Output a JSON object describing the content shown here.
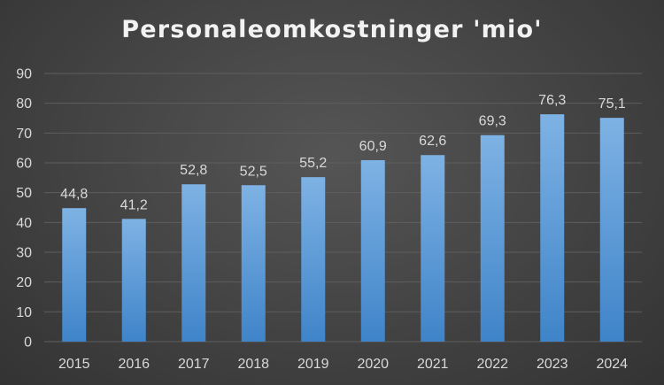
{
  "chart_data": {
    "type": "bar",
    "title": "Personaleomkostninger 'mio'",
    "xlabel": "",
    "ylabel": "",
    "categories": [
      "2015",
      "2016",
      "2017",
      "2018",
      "2019",
      "2020",
      "2021",
      "2022",
      "2023",
      "2024"
    ],
    "values": [
      44.8,
      41.2,
      52.8,
      52.5,
      55.2,
      60.9,
      62.6,
      69.3,
      76.3,
      75.1
    ],
    "data_labels": [
      "44,8",
      "41,2",
      "52,8",
      "52,5",
      "55,2",
      "60,9",
      "62,6",
      "69,3",
      "76,3",
      "75,1"
    ],
    "ylim": [
      0,
      90
    ],
    "yticks": [
      0,
      10,
      20,
      30,
      40,
      50,
      60,
      70,
      80,
      90
    ],
    "grid": true,
    "legend": "none",
    "colors": {
      "bar_top": "#7eb2e4",
      "bar_bottom": "#3f84c9",
      "grid": "#5e5e5e",
      "text": "#d9d9d9",
      "title": "#f2f2f2"
    }
  }
}
